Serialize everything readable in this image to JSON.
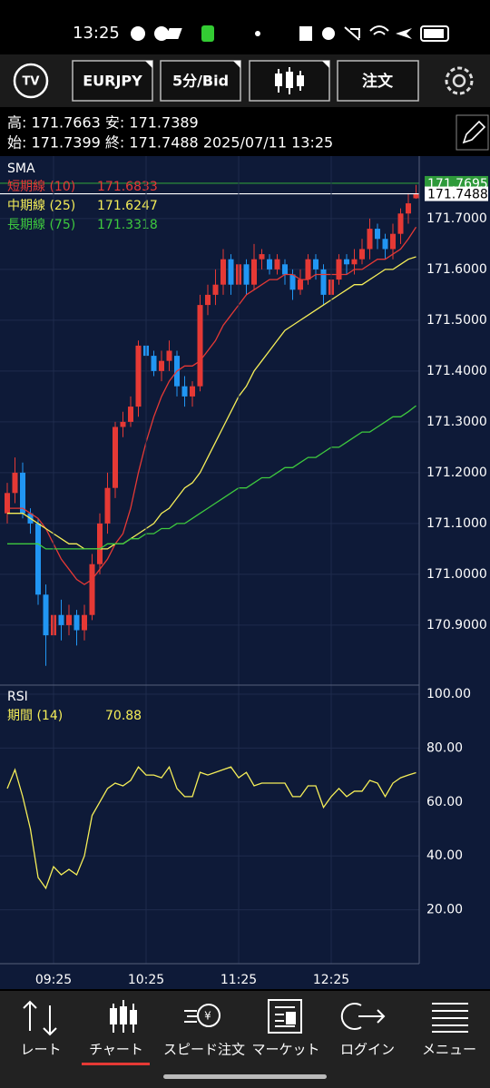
{
  "status_bar": {
    "time": "13:25"
  },
  "toolbar": {
    "symbol": "EURJPY",
    "interval": "5分/Bid",
    "order": "注文"
  },
  "info": {
    "line1": "高: 171.7663 安: 171.7389",
    "line2": "始: 171.7399 終: 171.7488 2025/07/11 13:25"
  },
  "chart_data": [
    {
      "type": "candlestick",
      "indicator": "SMA",
      "up_color": "#e53935",
      "down_color": "#2196f3",
      "grid": true,
      "ylim": [
        170.782,
        171.823
      ],
      "yticks": [
        {
          "value": 171.7,
          "label": "171.7000"
        },
        {
          "value": 171.6,
          "label": "171.6000"
        },
        {
          "value": 171.5,
          "label": "171.5000"
        },
        {
          "value": 171.4,
          "label": "171.4000"
        },
        {
          "value": 171.3,
          "label": "171.3000"
        },
        {
          "value": 171.2,
          "label": "171.2000"
        },
        {
          "value": 171.1,
          "label": "171.1000"
        },
        {
          "value": 171.0,
          "label": "171.0000"
        },
        {
          "value": 170.9,
          "label": "170.9000"
        }
      ],
      "open": [
        171.12,
        171.16,
        171.2,
        171.12,
        171.1,
        170.96,
        170.88,
        170.92,
        170.9,
        170.92,
        170.89,
        170.92,
        171.02,
        171.1,
        171.17,
        171.29,
        171.3,
        171.33,
        171.45,
        171.43,
        171.4,
        171.42,
        171.43,
        171.37,
        171.35,
        171.37,
        171.53,
        171.55,
        171.57,
        171.62,
        171.57,
        171.61,
        171.57,
        171.62,
        171.62,
        171.6,
        171.61,
        171.59,
        171.56,
        171.58,
        171.62,
        171.6,
        171.55,
        171.58,
        171.62,
        171.61,
        171.62,
        171.64,
        171.68,
        171.66,
        171.64,
        171.67,
        171.71,
        171.7399
      ],
      "high": [
        171.18,
        171.23,
        171.22,
        171.13,
        171.11,
        170.98,
        170.94,
        170.95,
        170.94,
        170.93,
        170.94,
        171.04,
        171.12,
        171.2,
        171.3,
        171.32,
        171.35,
        171.46,
        171.46,
        171.44,
        171.44,
        171.46,
        171.44,
        171.39,
        171.38,
        171.55,
        171.57,
        171.6,
        171.64,
        171.63,
        171.62,
        171.62,
        171.65,
        171.64,
        171.63,
        171.63,
        171.62,
        171.6,
        171.6,
        171.63,
        171.63,
        171.61,
        171.6,
        171.63,
        171.63,
        171.64,
        171.66,
        171.7,
        171.69,
        171.67,
        171.69,
        171.72,
        171.75,
        171.7663
      ],
      "low": [
        171.1,
        171.14,
        171.11,
        171.08,
        170.94,
        170.82,
        170.84,
        170.87,
        170.88,
        170.86,
        170.87,
        170.91,
        171.0,
        171.08,
        171.15,
        171.27,
        171.29,
        171.31,
        171.41,
        171.39,
        171.38,
        171.4,
        171.35,
        171.33,
        171.33,
        171.36,
        171.51,
        171.53,
        171.55,
        171.55,
        171.56,
        171.55,
        171.56,
        171.6,
        171.59,
        171.59,
        171.57,
        171.54,
        171.55,
        171.57,
        171.58,
        171.53,
        171.54,
        171.57,
        171.59,
        171.59,
        171.61,
        171.62,
        171.64,
        171.62,
        171.62,
        171.65,
        171.69,
        171.7389
      ],
      "close": [
        171.16,
        171.2,
        171.12,
        171.1,
        170.96,
        170.88,
        170.92,
        170.9,
        170.92,
        170.89,
        170.92,
        171.02,
        171.1,
        171.17,
        171.29,
        171.3,
        171.33,
        171.45,
        171.43,
        171.4,
        171.42,
        171.44,
        171.37,
        171.35,
        171.37,
        171.53,
        171.55,
        171.57,
        171.62,
        171.57,
        171.61,
        171.57,
        171.62,
        171.63,
        171.6,
        171.62,
        171.59,
        171.56,
        171.58,
        171.62,
        171.6,
        171.55,
        171.58,
        171.62,
        171.61,
        171.62,
        171.64,
        171.68,
        171.66,
        171.64,
        171.67,
        171.71,
        171.73,
        171.7488
      ],
      "series": [
        {
          "name": "短期線 (10)",
          "color": "#e53935",
          "legend_value": 171.6833,
          "values": [
            171.13,
            171.13,
            171.13,
            171.12,
            171.11,
            171.09,
            171.06,
            171.03,
            171.01,
            170.99,
            170.98,
            170.99,
            171.01,
            171.03,
            171.06,
            171.08,
            171.13,
            171.2,
            171.26,
            171.31,
            171.35,
            171.38,
            171.4,
            171.41,
            171.41,
            171.42,
            171.44,
            171.46,
            171.49,
            171.51,
            171.53,
            171.55,
            171.56,
            171.57,
            171.58,
            171.58,
            171.59,
            171.59,
            171.58,
            171.58,
            171.59,
            171.59,
            171.59,
            171.59,
            171.59,
            171.6,
            171.6,
            171.61,
            171.62,
            171.62,
            171.63,
            171.64,
            171.66,
            171.6833
          ]
        },
        {
          "name": "中期線 (25)",
          "color": "#f5ee58",
          "legend_value": 171.6247,
          "values": [
            171.12,
            171.12,
            171.12,
            171.11,
            171.1,
            171.09,
            171.08,
            171.07,
            171.06,
            171.06,
            171.05,
            171.05,
            171.05,
            171.05,
            171.06,
            171.06,
            171.07,
            171.08,
            171.09,
            171.1,
            171.12,
            171.13,
            171.15,
            171.17,
            171.18,
            171.2,
            171.23,
            171.26,
            171.29,
            171.32,
            171.35,
            171.37,
            171.4,
            171.42,
            171.44,
            171.46,
            171.48,
            171.49,
            171.5,
            171.51,
            171.52,
            171.53,
            171.54,
            171.55,
            171.56,
            171.57,
            171.57,
            171.58,
            171.59,
            171.6,
            171.6,
            171.61,
            171.62,
            171.6247
          ]
        },
        {
          "name": "長期線 (75)",
          "color": "#3ec93e",
          "legend_value": 171.3318,
          "values": [
            171.06,
            171.06,
            171.06,
            171.06,
            171.06,
            171.05,
            171.05,
            171.05,
            171.05,
            171.05,
            171.05,
            171.05,
            171.05,
            171.06,
            171.06,
            171.06,
            171.07,
            171.07,
            171.08,
            171.08,
            171.09,
            171.09,
            171.1,
            171.1,
            171.11,
            171.12,
            171.13,
            171.14,
            171.15,
            171.16,
            171.17,
            171.17,
            171.18,
            171.19,
            171.19,
            171.2,
            171.21,
            171.21,
            171.22,
            171.23,
            171.23,
            171.24,
            171.25,
            171.25,
            171.26,
            171.27,
            171.28,
            171.28,
            171.29,
            171.3,
            171.31,
            171.31,
            171.32,
            171.3318
          ]
        }
      ],
      "price_lines": [
        {
          "value": 171.7695,
          "color": "#2e9a3a"
        },
        {
          "value": 171.7488,
          "color": "#ffffff"
        }
      ]
    },
    {
      "type": "line",
      "indicator": "RSI",
      "grid": true,
      "ylim": [
        0,
        102.7
      ],
      "yticks": [
        {
          "value": 20,
          "label": "20.00"
        },
        {
          "value": 40,
          "label": "40.00"
        },
        {
          "value": 60,
          "label": "60.00"
        },
        {
          "value": 80,
          "label": "80.00"
        },
        {
          "value": 100,
          "label": "100.00"
        }
      ],
      "categories": [
        null,
        null,
        null,
        null,
        null,
        null,
        "09:25",
        null,
        null,
        null,
        null,
        null,
        null,
        null,
        null,
        null,
        null,
        null,
        "10:25",
        null,
        null,
        null,
        null,
        null,
        null,
        null,
        null,
        null,
        null,
        null,
        "11:25",
        null,
        null,
        null,
        null,
        null,
        null,
        null,
        null,
        null,
        null,
        null,
        "12:25",
        null,
        null,
        null,
        null,
        null,
        null,
        null,
        null,
        null,
        null,
        null
      ],
      "series": [
        {
          "name": "期間 (14)",
          "color": "#f5ee58",
          "legend_value": 70.88,
          "values": [
            65,
            72,
            62,
            50,
            32,
            28,
            36,
            33,
            35,
            33,
            40,
            55,
            60,
            65,
            67,
            66,
            68,
            73,
            70,
            70,
            69,
            73,
            65,
            62,
            62,
            71,
            70,
            71,
            72,
            73,
            69,
            71,
            66,
            67,
            67,
            67,
            67,
            62,
            62,
            66,
            66,
            58,
            62,
            65,
            62,
            64,
            64,
            68,
            67,
            62,
            67,
            69,
            70,
            70.88
          ]
        }
      ]
    }
  ],
  "nav": [
    "レート",
    "チャート",
    "スピード注文",
    "マーケット",
    "ログイン",
    "メニュー"
  ]
}
